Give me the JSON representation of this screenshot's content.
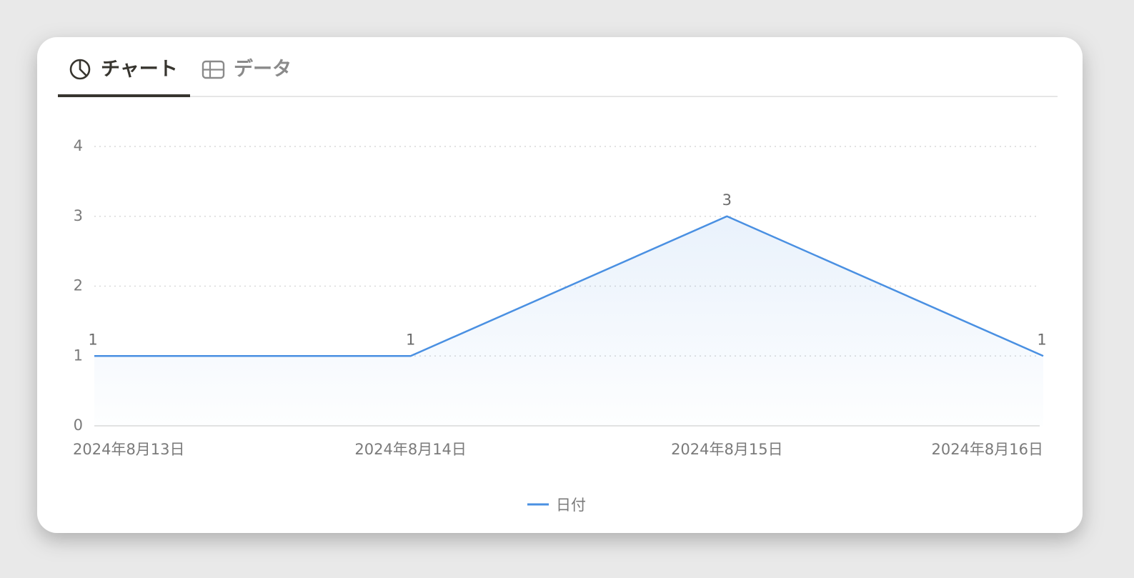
{
  "tabs": [
    {
      "label": "チャート",
      "active": true
    },
    {
      "label": "データ",
      "active": false
    }
  ],
  "chart_data": {
    "type": "line",
    "categories": [
      "2024年8月13日",
      "2024年8月14日",
      "2024年8月15日",
      "2024年8月16日"
    ],
    "series": [
      {
        "name": "日付",
        "color": "#4a90e2",
        "values": [
          1,
          1,
          3,
          1
        ]
      }
    ],
    "ylim": [
      0,
      4
    ],
    "yticks": [
      0,
      1,
      2,
      3,
      4
    ],
    "grid": true,
    "data_labels": true,
    "legend": "bottom"
  }
}
